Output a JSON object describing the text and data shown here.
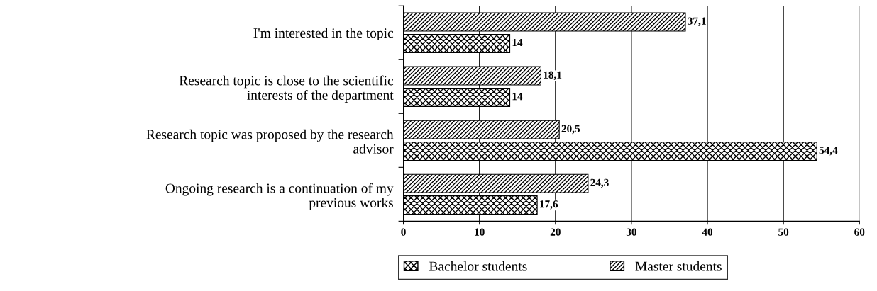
{
  "chart_data": {
    "type": "bar",
    "orientation": "horizontal",
    "categories": [
      "I'm interested in the topic",
      "Research topic is close to the scientific\ninterests of the department",
      "Research topic was proposed by the research\nadvisor",
      "Ongoing research is a continuation of my\nprevious works"
    ],
    "series": [
      {
        "name": "Bachelor students",
        "color": "#000000",
        "values": [
          14,
          14,
          54.4,
          17.6
        ],
        "value_labels": [
          "14",
          "14",
          "54,4",
          "17,6"
        ]
      },
      {
        "name": "Master students",
        "color": "#000000",
        "values": [
          37.1,
          18.1,
          20.5,
          24.3
        ],
        "value_labels": [
          "37,1",
          "18,1",
          "20,5",
          "24,3"
        ]
      }
    ],
    "xlim": [
      0,
      60
    ],
    "xticks": [
      0,
      10,
      20,
      30,
      40,
      50,
      60
    ],
    "grid": "x",
    "legend": "bottom"
  }
}
